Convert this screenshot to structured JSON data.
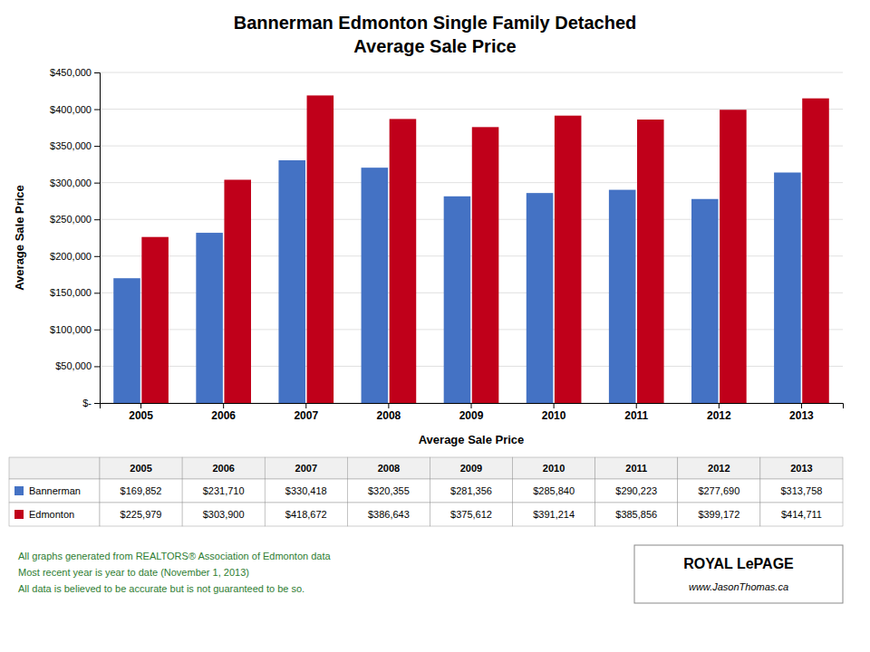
{
  "chart_data": {
    "type": "bar",
    "title": "Bannerman Edmonton Single Family Detached",
    "subtitle": "Average Sale Price",
    "x_label": "Average Sale Price",
    "y_label": "Average Sale Price",
    "categories": [
      "2005",
      "2006",
      "2007",
      "2008",
      "2009",
      "2010",
      "2011",
      "2012",
      "2013"
    ],
    "series": [
      {
        "name": "Bannerman",
        "color": "#4472C4",
        "values": [
          169852,
          231710,
          330418,
          320355,
          281356,
          285840,
          290223,
          277690,
          313758
        ],
        "value_labels": [
          "$169,852",
          "$231,710",
          "$330,418",
          "$320,355",
          "$281,356",
          "$285,840",
          "$290,223",
          "$277,690",
          "$313,758"
        ]
      },
      {
        "name": "Edmonton",
        "color": "#C0001A",
        "values": [
          225979,
          303900,
          418672,
          386643,
          375612,
          391214,
          385856,
          399172,
          414711
        ],
        "value_labels": [
          "$225,979",
          "$303,900",
          "$418,672",
          "$386,643",
          "$375,612",
          "$391,214",
          "$385,856",
          "$399,172",
          "$414,711"
        ]
      }
    ],
    "ylim": [
      0,
      450000
    ],
    "yticks": [
      {
        "value": 0,
        "label": "$-"
      },
      {
        "value": 50000,
        "label": "$50,000"
      },
      {
        "value": 100000,
        "label": "$100,000"
      },
      {
        "value": 150000,
        "label": "$150,000"
      },
      {
        "value": 200000,
        "label": "$200,000"
      },
      {
        "value": 250000,
        "label": "$250,000"
      },
      {
        "value": 300000,
        "label": "$300,000"
      },
      {
        "value": 350000,
        "label": "$350,000"
      },
      {
        "value": 400000,
        "label": "$400,000"
      },
      {
        "value": 450000,
        "label": "$450,000"
      }
    ],
    "grid": true,
    "annotations": [
      "All graphs generated from REALTORS® Association of Edmonton data",
      "Most recent year is year to date (November 1, 2013)",
      "All data is believed to be accurate but is not guaranteed to be so.",
      "ROYAL LePAGE",
      "www.JasonThomas.ca"
    ]
  }
}
